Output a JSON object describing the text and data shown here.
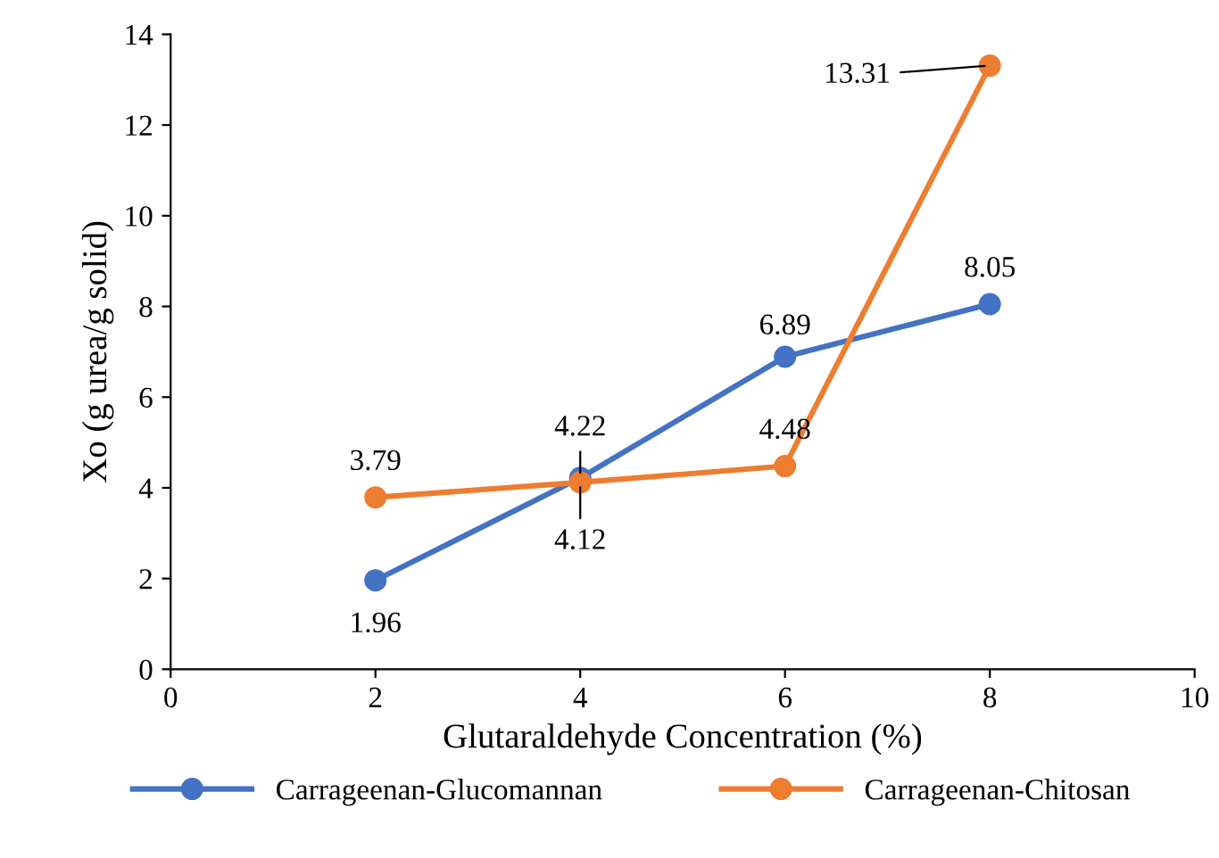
{
  "chart_data": {
    "type": "line",
    "xlabel": "Glutaraldehyde Concentration (%)",
    "ylabel": "Xo (g urea/g solid)",
    "x": [
      2,
      4,
      6,
      8
    ],
    "series": [
      {
        "name": "Carrageenan-Glucomannan",
        "color": "#4472c4",
        "values": [
          1.96,
          4.22,
          6.89,
          8.05
        ]
      },
      {
        "name": "Carrageenan-Chitosan",
        "color": "#ed7d31",
        "values": [
          3.79,
          4.12,
          4.48,
          13.31
        ]
      }
    ],
    "xlim": [
      0,
      10
    ],
    "xticks": [
      0,
      2,
      4,
      6,
      8,
      10
    ],
    "ylim": [
      0,
      14
    ],
    "yticks": [
      0,
      2,
      4,
      6,
      8,
      10,
      12,
      14
    ],
    "grid": false,
    "legend": "bottom",
    "marker": "circle",
    "line_style": "solid",
    "data_labels": true
  }
}
